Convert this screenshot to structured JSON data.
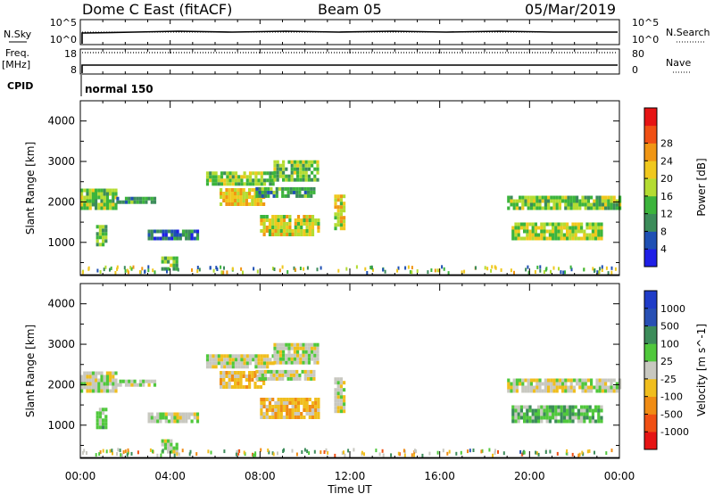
{
  "header": {
    "title": "Dome C East (fitACF)",
    "beam": "Beam 05",
    "date": "05/Mar/2019"
  },
  "housekeeping": {
    "nsky_label": "N.Sky",
    "nsearch_label": "N.Search",
    "freq_label": "Freq.",
    "freq_unit": "[MHz]",
    "nave_label": "Nave",
    "cpid_label": "CPID",
    "cpid_value": "normal 150",
    "noise_ticks": [
      "10^5",
      "10^0"
    ],
    "freq_ticks": [
      "18",
      "8"
    ],
    "nave_ticks": [
      "80",
      "0"
    ]
  },
  "x_axis": {
    "label": "Time UT",
    "ticks": [
      "00:00",
      "04:00",
      "08:00",
      "12:00",
      "16:00",
      "20:00",
      "00:00"
    ]
  },
  "colors": {
    "power": [
      "#1f1fe6",
      "#1f50b4",
      "#3c8c5a",
      "#3cb43c",
      "#b4dc32",
      "#f0c81e",
      "#f09614",
      "#f05014",
      "#e61414"
    ],
    "velocity": [
      "#e61414",
      "#f05014",
      "#f08c14",
      "#f0be1e",
      "#c8c8c0",
      "#50c83c",
      "#3c8c5a",
      "#2850b4",
      "#1f3cc8"
    ]
  },
  "chart_data": [
    {
      "type": "heatmap",
      "name": "Power",
      "xlabel": "Time UT",
      "ylabel": "Slant Range [km]",
      "xlim": [
        0,
        24
      ],
      "ylim": [
        180,
        4500
      ],
      "yticks": [
        "1000",
        "2000",
        "3000",
        "4000"
      ],
      "colorbar": {
        "label": "Power [dB]",
        "range": [
          0,
          32
        ],
        "ticks": [
          "4",
          "8",
          "12",
          "16",
          "20",
          "24",
          "28"
        ]
      },
      "regions": [
        {
          "t0": 0.0,
          "t1": 1.6,
          "r0": 1800,
          "r1": 2250,
          "value": 14
        },
        {
          "t0": 1.6,
          "t1": 3.3,
          "r0": 1950,
          "r1": 2100,
          "value": 10
        },
        {
          "t0": 0.7,
          "t1": 1.1,
          "r0": 900,
          "r1": 1400,
          "value": 12
        },
        {
          "t0": 3.0,
          "t1": 5.2,
          "r0": 1050,
          "r1": 1300,
          "value": 6
        },
        {
          "t0": 3.6,
          "t1": 4.3,
          "r0": 300,
          "r1": 600,
          "value": 14
        },
        {
          "t0": 6.2,
          "t1": 8.2,
          "r0": 1900,
          "r1": 2300,
          "value": 20
        },
        {
          "t0": 5.6,
          "t1": 8.6,
          "r0": 2400,
          "r1": 2750,
          "value": 14
        },
        {
          "t0": 8.6,
          "t1": 10.6,
          "r0": 2500,
          "r1": 2950,
          "value": 14
        },
        {
          "t0": 7.8,
          "t1": 10.4,
          "r0": 2100,
          "r1": 2350,
          "value": 10
        },
        {
          "t0": 8.0,
          "t1": 10.6,
          "r0": 1150,
          "r1": 1650,
          "value": 18
        },
        {
          "t0": 11.3,
          "t1": 11.8,
          "r0": 1300,
          "r1": 2100,
          "value": 18
        },
        {
          "t0": 19.0,
          "t1": 24.0,
          "r0": 1800,
          "r1": 2100,
          "value": 14
        },
        {
          "t0": 19.2,
          "t1": 23.2,
          "r0": 1050,
          "r1": 1450,
          "value": 16
        }
      ]
    },
    {
      "type": "heatmap",
      "name": "Velocity",
      "xlabel": "Time UT",
      "ylabel": "Slant Range [km]",
      "xlim": [
        0,
        24
      ],
      "ylim": [
        180,
        4500
      ],
      "yticks": [
        "1000",
        "2000",
        "3000",
        "4000"
      ],
      "colorbar": {
        "label": "Velocity [m s^-1]",
        "range": [
          -1250,
          1250
        ],
        "ticks": [
          "-1000",
          "-500",
          "-100",
          "-25",
          "25",
          "100",
          "500",
          "1000"
        ]
      },
      "regions": [
        {
          "t0": 0.0,
          "t1": 1.6,
          "r0": 1800,
          "r1": 2250,
          "value": 0
        },
        {
          "t0": 1.6,
          "t1": 3.3,
          "r0": 1950,
          "r1": 2100,
          "value": 0
        },
        {
          "t0": 0.7,
          "t1": 1.1,
          "r0": 900,
          "r1": 1400,
          "value": 200
        },
        {
          "t0": 3.0,
          "t1": 5.2,
          "r0": 1050,
          "r1": 1300,
          "value": 0
        },
        {
          "t0": 3.6,
          "t1": 4.3,
          "r0": 300,
          "r1": 600,
          "value": 0
        },
        {
          "t0": 6.2,
          "t1": 8.2,
          "r0": 1900,
          "r1": 2300,
          "value": -300
        },
        {
          "t0": 5.6,
          "t1": 8.6,
          "r0": 2400,
          "r1": 2750,
          "value": 0
        },
        {
          "t0": 8.6,
          "t1": 10.6,
          "r0": 2500,
          "r1": 2950,
          "value": 0
        },
        {
          "t0": 7.8,
          "t1": 10.4,
          "r0": 2100,
          "r1": 2350,
          "value": 0
        },
        {
          "t0": 8.0,
          "t1": 10.6,
          "r0": 1150,
          "r1": 1650,
          "value": -300
        },
        {
          "t0": 11.3,
          "t1": 11.8,
          "r0": 1300,
          "r1": 2100,
          "value": 0
        },
        {
          "t0": 19.0,
          "t1": 24.0,
          "r0": 1800,
          "r1": 2100,
          "value": 0
        },
        {
          "t0": 19.2,
          "t1": 23.2,
          "r0": 1050,
          "r1": 1450,
          "value": 300
        }
      ]
    }
  ]
}
